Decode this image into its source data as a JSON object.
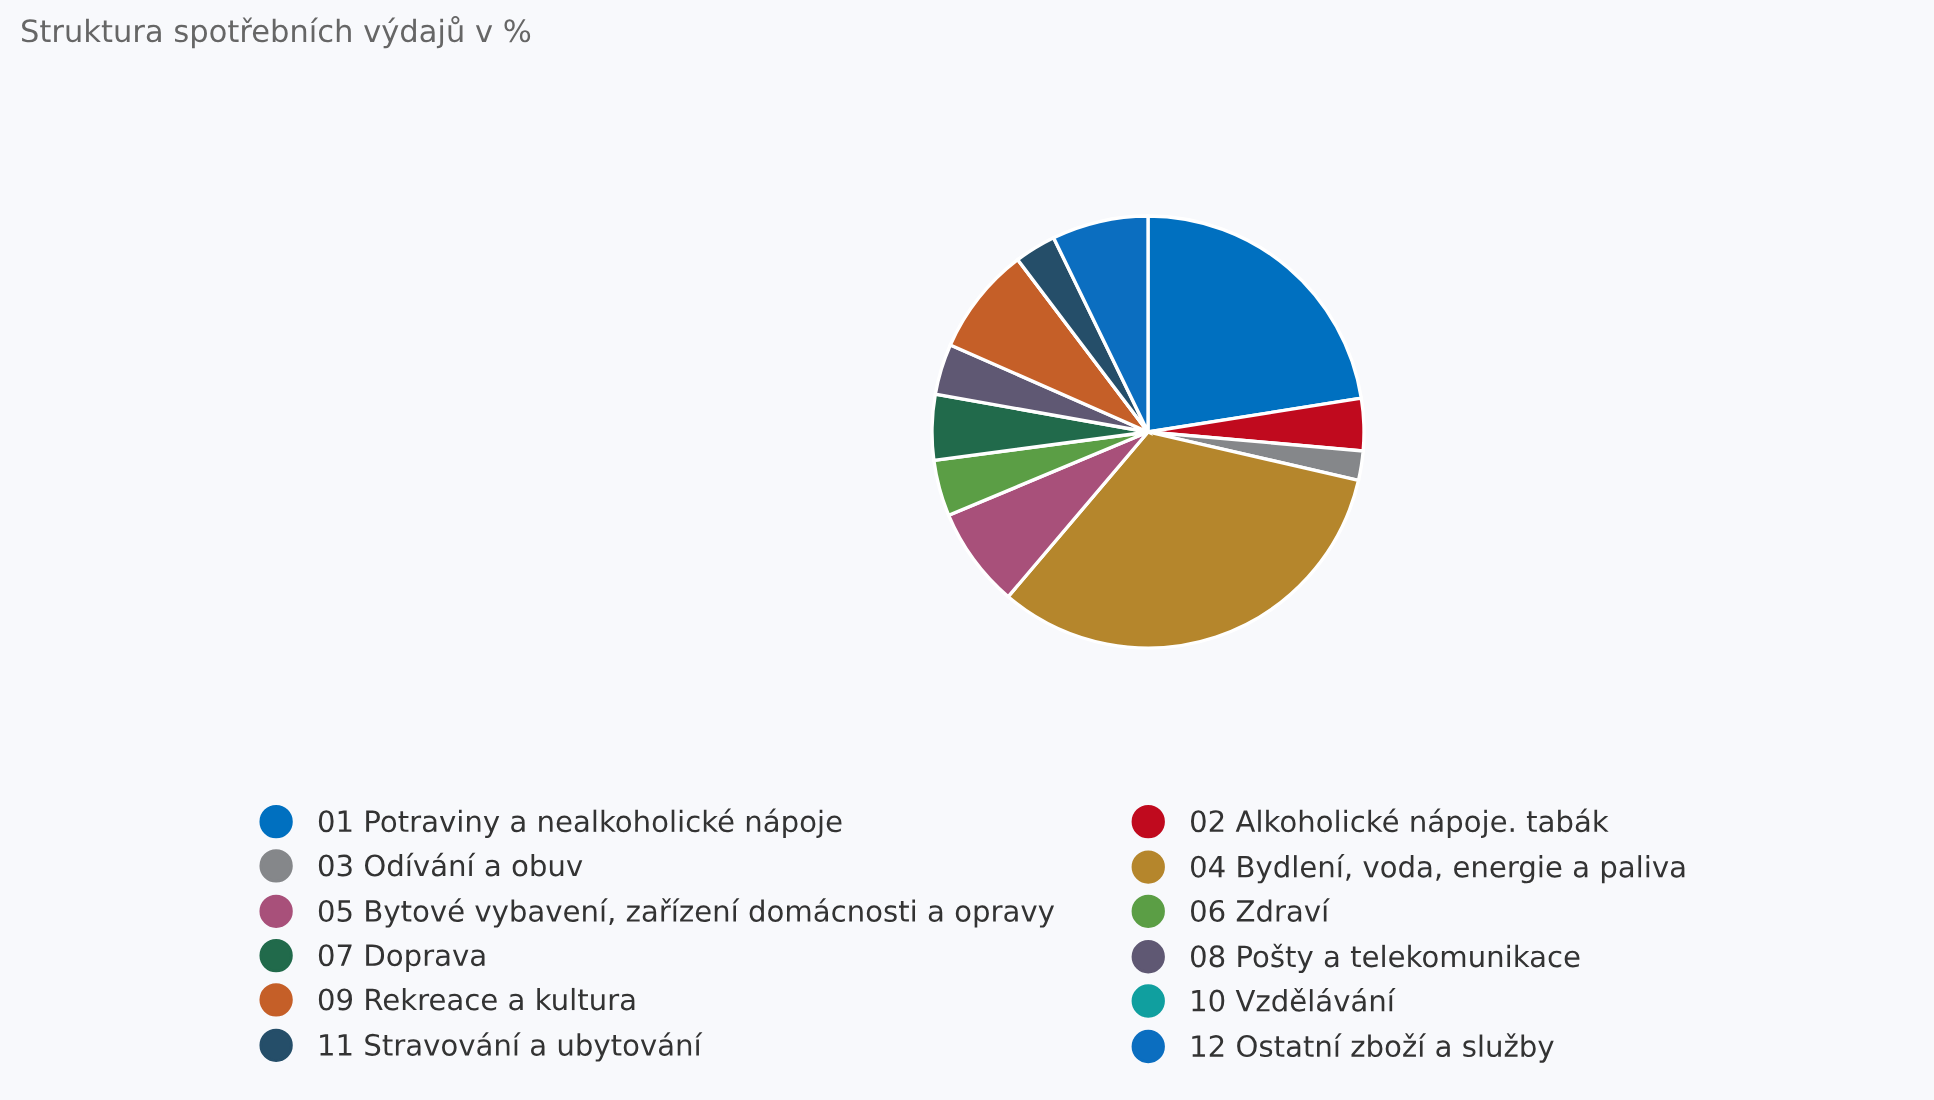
{
  "chart_data": {
    "type": "pie",
    "title": "Struktura spotřebních výdajů v %",
    "categories": [
      "01 Potraviny a nealkoholické nápoje",
      "02 Alkoholické nápoje. tabák",
      "03 Odívání a obuv",
      "04 Bydlení, voda, energie a paliva",
      "05 Bytové vybavení, zařízení domácnosti a opravy",
      "06 Zdraví",
      "07 Doprava",
      "08 Pošty a telekomunikace",
      "09 Rekreace a kultura",
      "10 Vzdělávání",
      "11 Stravování a ubytování",
      "12 Ostatní zboží a služby"
    ],
    "values": [
      22.5,
      3.9,
      2.2,
      32.6,
      7.5,
      4.2,
      4.9,
      3.8,
      8.1,
      0,
      3.1,
      7.2
    ],
    "colors": [
      "#0070c0",
      "#c00a1e",
      "#85878a",
      "#b5862c",
      "#a8507a",
      "#5b9e45",
      "#216a4b",
      "#5f5873",
      "#c55f28",
      "#109f9f",
      "#254e69",
      "#0b6ec0"
    ],
    "legend": "bottom"
  }
}
